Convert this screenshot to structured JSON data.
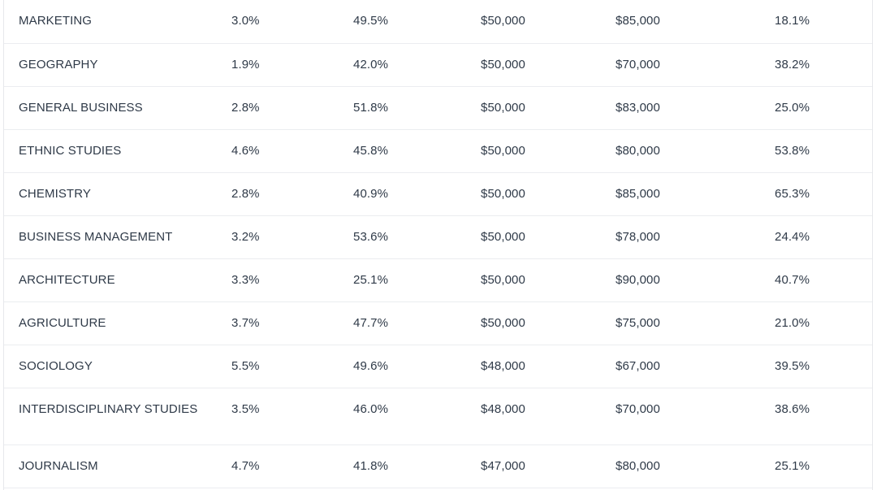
{
  "table": {
    "rows": [
      {
        "major": "MARKETING",
        "v1": "3.0%",
        "v2": "49.5%",
        "v3": "$50,000",
        "v4": "$85,000",
        "v5": "18.1%"
      },
      {
        "major": "GEOGRAPHY",
        "v1": "1.9%",
        "v2": "42.0%",
        "v3": "$50,000",
        "v4": "$70,000",
        "v5": "38.2%"
      },
      {
        "major": "GENERAL BUSINESS",
        "v1": "2.8%",
        "v2": "51.8%",
        "v3": "$50,000",
        "v4": "$83,000",
        "v5": "25.0%"
      },
      {
        "major": "ETHNIC STUDIES",
        "v1": "4.6%",
        "v2": "45.8%",
        "v3": "$50,000",
        "v4": "$80,000",
        "v5": "53.8%"
      },
      {
        "major": "CHEMISTRY",
        "v1": "2.8%",
        "v2": "40.9%",
        "v3": "$50,000",
        "v4": "$85,000",
        "v5": "65.3%"
      },
      {
        "major": "BUSINESS MANAGEMENT",
        "v1": "3.2%",
        "v2": "53.6%",
        "v3": "$50,000",
        "v4": "$78,000",
        "v5": "24.4%"
      },
      {
        "major": "ARCHITECTURE",
        "v1": "3.3%",
        "v2": "25.1%",
        "v3": "$50,000",
        "v4": "$90,000",
        "v5": "40.7%"
      },
      {
        "major": "AGRICULTURE",
        "v1": "3.7%",
        "v2": "47.7%",
        "v3": "$50,000",
        "v4": "$75,000",
        "v5": "21.0%"
      },
      {
        "major": "SOCIOLOGY",
        "v1": "5.5%",
        "v2": "49.6%",
        "v3": "$48,000",
        "v4": "$67,000",
        "v5": "39.5%"
      },
      {
        "major": "INTERDISCIPLINARY STUDIES",
        "v1": "3.5%",
        "v2": "46.0%",
        "v3": "$48,000",
        "v4": "$70,000",
        "v5": "38.6%"
      },
      {
        "major": "JOURNALISM",
        "v1": "4.7%",
        "v2": "41.8%",
        "v3": "$47,000",
        "v4": "$80,000",
        "v5": "25.1%"
      }
    ]
  }
}
